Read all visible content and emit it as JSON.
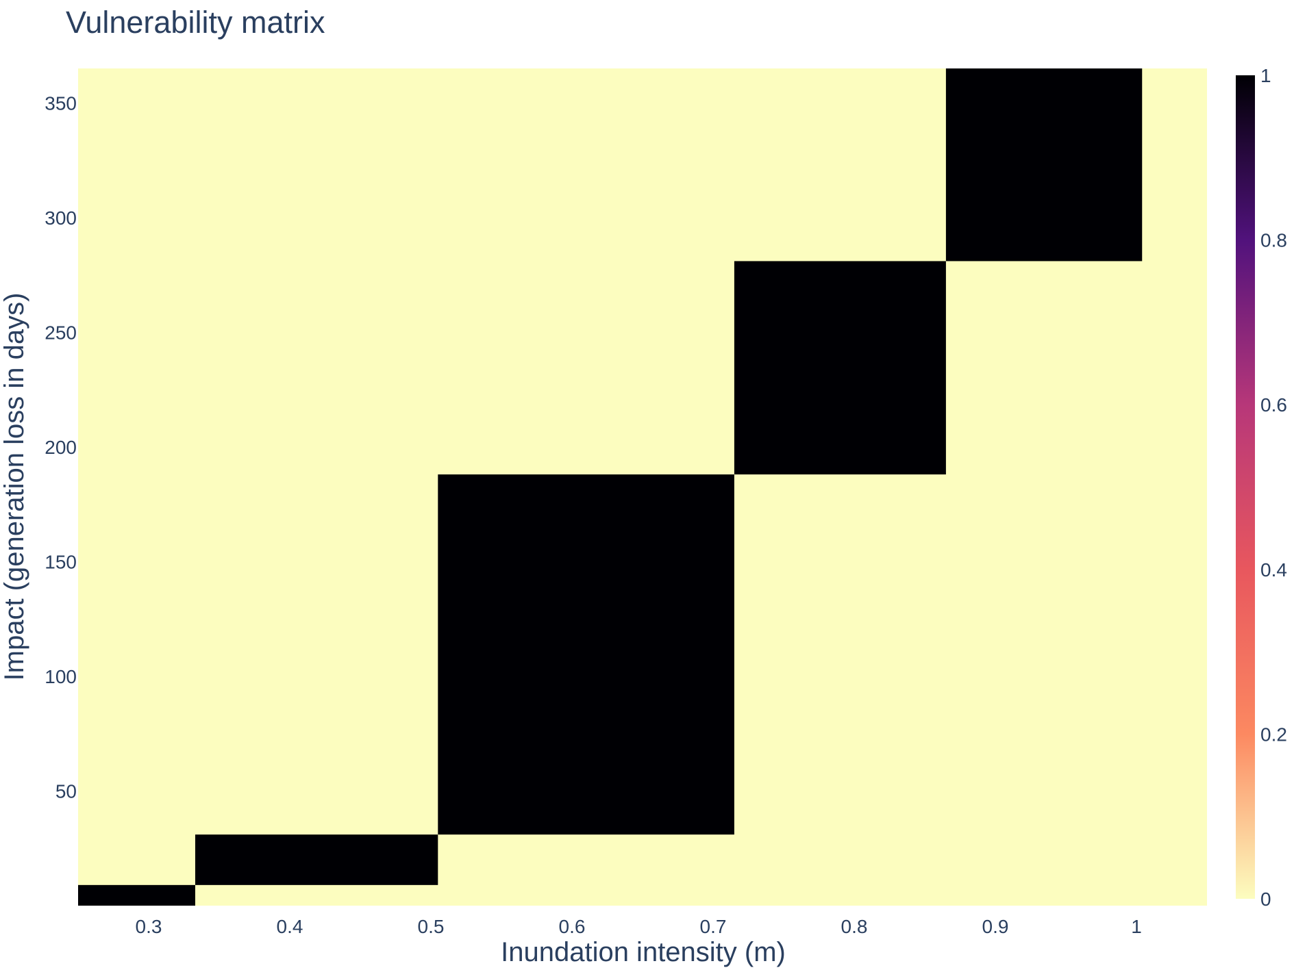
{
  "chart_data": {
    "type": "heatmap",
    "title": "Vulnerability matrix",
    "xlabel": "Inundation intensity (m)",
    "ylabel": "Impact (generation loss in days)",
    "xlim": [
      0.25,
      1.05
    ],
    "ylim": [
      0,
      365
    ],
    "x_ticks": [
      "0.3",
      "0.4",
      "0.5",
      "0.6",
      "0.7",
      "0.8",
      "0.9",
      "1"
    ],
    "x_tick_values": [
      0.3,
      0.4,
      0.5,
      0.6,
      0.7,
      0.8,
      0.9,
      1.0
    ],
    "y_ticks": [
      "50",
      "100",
      "150",
      "200",
      "250",
      "300",
      "350"
    ],
    "y_tick_values": [
      50,
      100,
      150,
      200,
      250,
      300,
      350
    ],
    "background_value": 0,
    "cells": [
      {
        "x0": 0.25,
        "x1": 0.333,
        "y0": 0,
        "y1": 9,
        "value": 1
      },
      {
        "x0": 0.333,
        "x1": 0.505,
        "y0": 9,
        "y1": 31,
        "value": 1
      },
      {
        "x0": 0.505,
        "x1": 0.715,
        "y0": 31,
        "y1": 188,
        "value": 1
      },
      {
        "x0": 0.715,
        "x1": 0.865,
        "y0": 188,
        "y1": 281,
        "value": 1
      },
      {
        "x0": 0.865,
        "x1": 1.004,
        "y0": 281,
        "y1": 365,
        "value": 1
      }
    ],
    "colorscale": {
      "name": "magma (reversed)",
      "stops": [
        {
          "value": 0,
          "color": "#fcfdbf"
        },
        {
          "value": 0.2,
          "color": "#fc8961"
        },
        {
          "value": 0.4,
          "color": "#e8575e"
        },
        {
          "value": 0.6,
          "color": "#b73779"
        },
        {
          "value": 0.8,
          "color": "#51127c"
        },
        {
          "value": 1,
          "color": "#000004"
        }
      ],
      "ticks": [
        "0",
        "0.2",
        "0.4",
        "0.6",
        "0.8",
        "1"
      ],
      "tick_values": [
        0,
        0.2,
        0.4,
        0.6,
        0.8,
        1
      ]
    },
    "grid": false,
    "colorbar_position": "right"
  }
}
